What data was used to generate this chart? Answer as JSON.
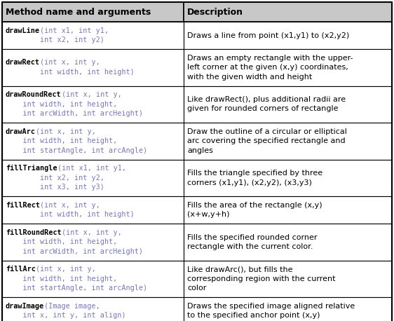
{
  "col1_header": "Method name and arguments",
  "col2_header": "Description",
  "header_bg": "#c8c8c8",
  "border_color": "#000000",
  "text_color_black": "#000000",
  "text_color_blue": "#7777bb",
  "rows": [
    {
      "col1_bold_part": "drawLine",
      "col1_lines": [
        {
          "bold": "drawLine",
          "rest": "(int x1, int y1,"
        },
        {
          "bold": "",
          "rest": "        int x2, int y2)"
        }
      ],
      "col2_lines": [
        "Draws a line from point (x1,y1) to (x2,y2)"
      ]
    },
    {
      "col1_bold_part": "drawRect",
      "col1_lines": [
        {
          "bold": "drawRect",
          "rest": "(int x, int y,"
        },
        {
          "bold": "",
          "rest": "        int width, int height)"
        }
      ],
      "col2_lines": [
        "Draws an empty rectangle with the upper-",
        "left corner at the given (x,y) coordinates,",
        "with the given width and height"
      ]
    },
    {
      "col1_bold_part": "drawRoundRect",
      "col1_lines": [
        {
          "bold": "drawRoundRect",
          "rest": "(int x, int y,"
        },
        {
          "bold": "",
          "rest": "    int width, int height,"
        },
        {
          "bold": "",
          "rest": "    int arcWidth, int arcHeight)"
        }
      ],
      "col2_lines": [
        "Like drawRect(), plus additional radii are",
        "given for rounded corners of rectangle"
      ]
    },
    {
      "col1_bold_part": "drawArc",
      "col1_lines": [
        {
          "bold": "drawArc",
          "rest": "(int x, int y,"
        },
        {
          "bold": "",
          "rest": "    int width, int height,"
        },
        {
          "bold": "",
          "rest": "    int startAngle, int arcAngle)"
        }
      ],
      "col2_lines": [
        "Draw the outline of a circular or elliptical",
        "arc covering the specified rectangle and",
        "angles"
      ]
    },
    {
      "col1_bold_part": "fillTriangle",
      "col1_lines": [
        {
          "bold": "fillTriangle",
          "rest": "(int x1, int y1,"
        },
        {
          "bold": "",
          "rest": "        int x2, int y2,"
        },
        {
          "bold": "",
          "rest": "        int x3, int y3)"
        }
      ],
      "col2_lines": [
        "Fills the triangle specified by three",
        "corners (x1,y1), (x2,y2), (x3,y3)"
      ]
    },
    {
      "col1_bold_part": "fillRect",
      "col1_lines": [
        {
          "bold": "fillRect",
          "rest": "(int x, int y,"
        },
        {
          "bold": "",
          "rest": "        int width, int height)"
        }
      ],
      "col2_lines": [
        "Fills the area of the rectangle (x,y)",
        "(x+w,y+h)"
      ]
    },
    {
      "col1_bold_part": "fillRoundRect",
      "col1_lines": [
        {
          "bold": "fillRoundRect",
          "rest": "(int x, int y,"
        },
        {
          "bold": "",
          "rest": "    int width, int height,"
        },
        {
          "bold": "",
          "rest": "    int arcWidth, int arcHeight)"
        }
      ],
      "col2_lines": [
        "Fills the specified rounded corner",
        "rectangle with the current color."
      ]
    },
    {
      "col1_bold_part": "fillArc",
      "col1_lines": [
        {
          "bold": "fillArc",
          "rest": "(int x, int y,"
        },
        {
          "bold": "",
          "rest": "    int width, int height,"
        },
        {
          "bold": "",
          "rest": "    int startAngle, int arcAngle)"
        }
      ],
      "col2_lines": [
        "Like drawArc(), but fills the",
        "corresponding region with the current",
        "color"
      ]
    },
    {
      "col1_bold_part": "drawImage",
      "col1_lines": [
        {
          "bold": "drawImage",
          "rest": "(Image image,"
        },
        {
          "bold": "",
          "rest": "    int x, int y, int align)"
        }
      ],
      "col2_lines": [
        "Draws the specified image aligned relative",
        "to the specified anchor point (x,y)"
      ]
    }
  ],
  "figsize": [
    5.62,
    4.58
  ],
  "dpi": 100
}
